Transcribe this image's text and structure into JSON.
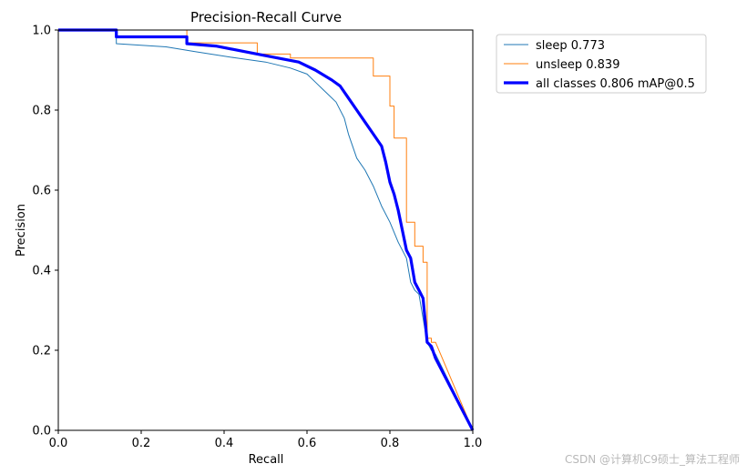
{
  "chart_data": {
    "type": "line",
    "title": "Precision-Recall Curve",
    "xlabel": "Recall",
    "ylabel": "Precision",
    "xlim": [
      0,
      1
    ],
    "ylim": [
      0,
      1
    ],
    "xticks": [
      "0.0",
      "0.2",
      "0.4",
      "0.6",
      "0.8",
      "1.0"
    ],
    "yticks": [
      "0.0",
      "0.2",
      "0.4",
      "0.6",
      "0.8",
      "1.0"
    ],
    "grid": false,
    "legend_position": "outside-top-right",
    "series": [
      {
        "name": "sleep 0.773",
        "color": "#1f77b4",
        "width": "thin",
        "x": [
          0,
          0.14,
          0.14,
          0.26,
          0.33,
          0.43,
          0.5,
          0.56,
          0.6,
          0.62,
          0.64,
          0.67,
          0.69,
          0.7,
          0.72,
          0.74,
          0.76,
          0.78,
          0.8,
          0.82,
          0.84,
          0.85,
          0.86,
          0.87,
          0.88,
          0.89,
          0.9,
          0.91,
          1.0
        ],
        "y": [
          1.0,
          1.0,
          0.966,
          0.958,
          0.946,
          0.93,
          0.92,
          0.905,
          0.89,
          0.87,
          0.85,
          0.82,
          0.78,
          0.74,
          0.68,
          0.65,
          0.61,
          0.56,
          0.52,
          0.47,
          0.43,
          0.37,
          0.35,
          0.34,
          0.28,
          0.22,
          0.2,
          0.19,
          0.0
        ]
      },
      {
        "name": "unsleep 0.839",
        "color": "#ff7f0e",
        "width": "thin",
        "x": [
          0,
          0.31,
          0.31,
          0.48,
          0.48,
          0.56,
          0.56,
          0.76,
          0.76,
          0.8,
          0.8,
          0.81,
          0.81,
          0.84,
          0.84,
          0.86,
          0.86,
          0.88,
          0.88,
          0.89,
          0.89,
          0.9,
          0.9,
          0.91,
          1.0
        ],
        "y": [
          1.0,
          1.0,
          0.968,
          0.968,
          0.94,
          0.94,
          0.93,
          0.93,
          0.885,
          0.885,
          0.81,
          0.81,
          0.73,
          0.73,
          0.52,
          0.52,
          0.46,
          0.46,
          0.42,
          0.42,
          0.23,
          0.23,
          0.22,
          0.22,
          0.0
        ]
      },
      {
        "name": "all classes 0.806 mAP@0.5",
        "color": "#0000ff",
        "width": "thick",
        "x": [
          0,
          0.14,
          0.14,
          0.31,
          0.31,
          0.38,
          0.48,
          0.53,
          0.58,
          0.62,
          0.66,
          0.68,
          0.7,
          0.72,
          0.74,
          0.76,
          0.78,
          0.79,
          0.8,
          0.81,
          0.82,
          0.84,
          0.85,
          0.86,
          0.87,
          0.88,
          0.89,
          0.9,
          0.91,
          1.0
        ],
        "y": [
          1.0,
          1.0,
          0.983,
          0.983,
          0.966,
          0.96,
          0.94,
          0.93,
          0.92,
          0.9,
          0.875,
          0.86,
          0.83,
          0.8,
          0.77,
          0.74,
          0.71,
          0.67,
          0.62,
          0.59,
          0.55,
          0.45,
          0.43,
          0.37,
          0.35,
          0.33,
          0.22,
          0.21,
          0.18,
          0.0
        ]
      }
    ]
  },
  "watermark": "CSDN @计算机C9硕士_算法工程师"
}
